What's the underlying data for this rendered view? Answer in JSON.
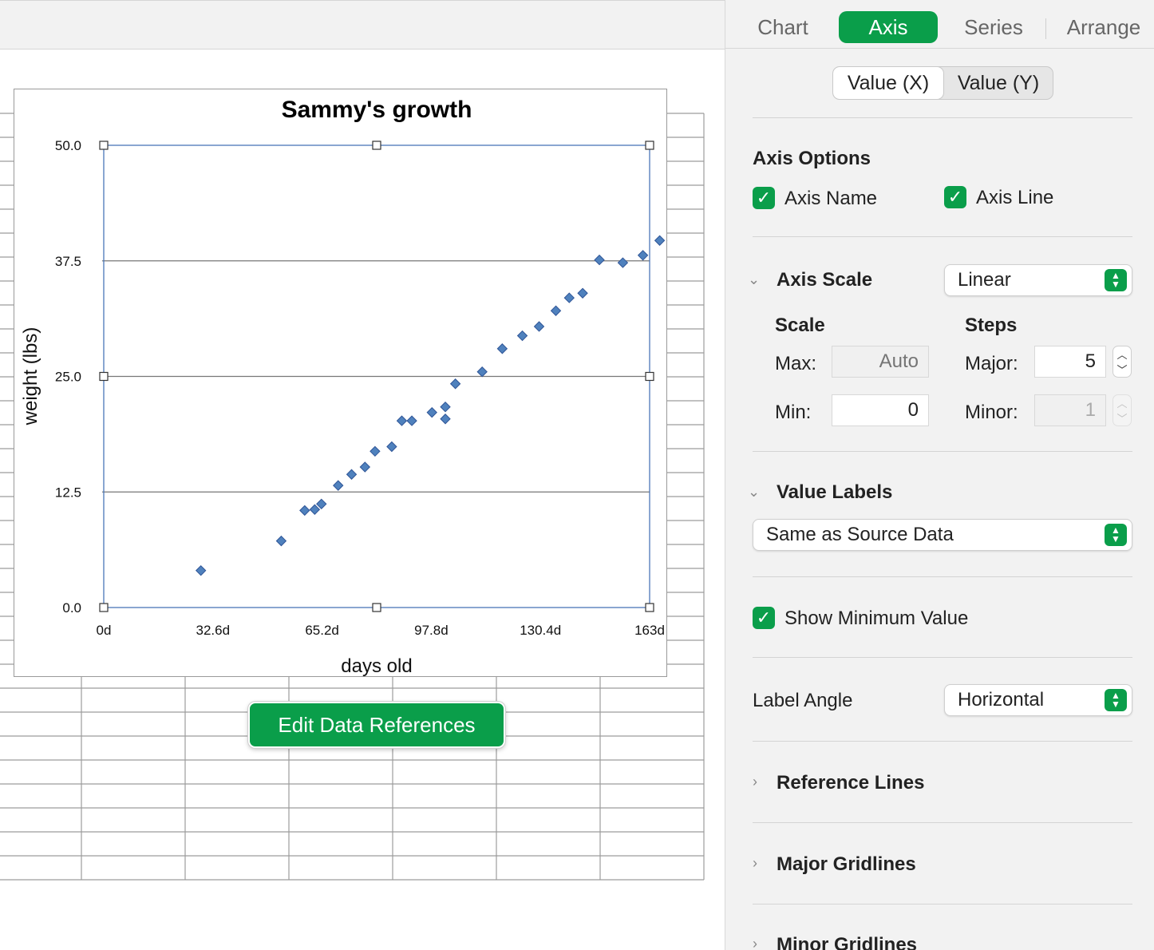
{
  "inspector": {
    "tabs": [
      {
        "label": "Chart",
        "active": false
      },
      {
        "label": "Axis",
        "active": true
      },
      {
        "label": "Series",
        "active": false
      },
      {
        "label": "Arrange",
        "active": false
      }
    ],
    "axis_selector": [
      {
        "label": "Value (X)",
        "active": true
      },
      {
        "label": "Value (Y)",
        "active": false
      }
    ],
    "axis_options": {
      "heading": "Axis Options",
      "axis_name": {
        "label": "Axis Name",
        "checked": true
      },
      "axis_line": {
        "label": "Axis Line",
        "checked": true
      }
    },
    "axis_scale": {
      "label": "Axis Scale",
      "value": "Linear",
      "scale_heading": "Scale",
      "steps_heading": "Steps",
      "max_label": "Max:",
      "max_value": "",
      "max_placeholder": "Auto",
      "min_label": "Min:",
      "min_value": "0",
      "major_label": "Major:",
      "major_value": "5",
      "minor_label": "Minor:",
      "minor_value": "1"
    },
    "value_labels": {
      "label": "Value Labels",
      "value": "Same as Source Data"
    },
    "show_minimum_value": {
      "label": "Show Minimum Value",
      "checked": true
    },
    "label_angle": {
      "label": "Label Angle",
      "value": "Horizontal"
    },
    "sections": {
      "reference_lines": "Reference Lines",
      "major_gridlines": "Major Gridlines",
      "minor_gridlines": "Minor Gridlines"
    }
  },
  "edit_data_references": "Edit Data References",
  "colors": {
    "accent": "#0a9e4a",
    "marker": "#4f81bd"
  },
  "icons": {
    "checkbox": "checkmark-icon",
    "popup": "up-down-arrows-icon",
    "disclosure_open": "chevron-down-icon",
    "disclosure_closed": "chevron-right-icon"
  },
  "chart_data": {
    "type": "scatter",
    "title": "Sammy's growth",
    "xlabel": "days old",
    "ylabel": "weight (lbs)",
    "xlim": [
      0,
      163
    ],
    "ylim": [
      0,
      50
    ],
    "x_tick_labels": [
      "0d",
      "32.6d",
      "65.2d",
      "97.8d",
      "130.4d",
      "163d"
    ],
    "y_tick_labels": [
      "0.0",
      "12.5",
      "25.0",
      "37.5",
      "50.0"
    ],
    "y_ticks": [
      0,
      12.5,
      25,
      37.5,
      50
    ],
    "grid": true,
    "legend": "none",
    "series": [
      {
        "x": [
          29,
          53,
          60,
          63,
          65,
          70,
          74,
          78,
          81,
          86,
          89,
          92,
          98,
          102,
          102,
          105,
          113,
          119,
          125,
          130,
          135,
          139,
          143,
          148,
          155,
          161,
          166,
          170
        ],
        "y": [
          4,
          7.2,
          10.5,
          10.6,
          11.2,
          13.2,
          14.4,
          15.2,
          16.9,
          17.4,
          20.2,
          20.2,
          21.1,
          20.4,
          21.7,
          24.2,
          25.5,
          28,
          29.4,
          30.4,
          32.1,
          33.5,
          34,
          37.6,
          37.3,
          38.1,
          39.7,
          39.7
        ]
      }
    ]
  }
}
